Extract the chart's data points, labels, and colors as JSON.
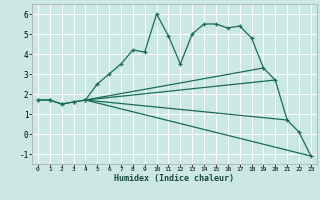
{
  "xlabel": "Humidex (Indice chaleur)",
  "bg_color": "#cce8e4",
  "grid_color": "#ffffff",
  "line_color": "#1a6b5a",
  "xlim": [
    -0.5,
    23.5
  ],
  "ylim": [
    -1.5,
    6.5
  ],
  "xticks": [
    0,
    1,
    2,
    3,
    4,
    5,
    6,
    7,
    8,
    9,
    10,
    11,
    12,
    13,
    14,
    15,
    16,
    17,
    18,
    19,
    20,
    21,
    22,
    23
  ],
  "yticks": [
    -1,
    0,
    1,
    2,
    3,
    4,
    5,
    6
  ],
  "series": [
    {
      "x": [
        0,
        1,
        2,
        3,
        4
      ],
      "y": [
        1.7,
        1.7,
        1.5,
        1.6,
        1.7
      ],
      "marker": true
    },
    {
      "x": [
        0,
        1,
        2,
        3,
        4,
        5,
        6,
        7,
        8,
        9,
        10,
        11,
        12,
        13,
        14,
        15,
        16,
        17,
        18,
        19,
        20,
        21,
        22,
        23
      ],
      "y": [
        1.7,
        1.7,
        1.5,
        1.6,
        1.7,
        2.5,
        3.0,
        3.5,
        4.2,
        4.1,
        6.0,
        4.9,
        3.5,
        5.0,
        5.5,
        5.5,
        5.3,
        5.4,
        4.8,
        3.3,
        2.7,
        0.7,
        0.1,
        -1.1
      ],
      "marker": true
    },
    {
      "x": [
        4,
        23
      ],
      "y": [
        1.7,
        -1.1
      ],
      "marker": false
    },
    {
      "x": [
        4,
        19
      ],
      "y": [
        1.7,
        3.3
      ],
      "marker": false
    },
    {
      "x": [
        4,
        20
      ],
      "y": [
        1.7,
        2.7
      ],
      "marker": false
    },
    {
      "x": [
        4,
        21
      ],
      "y": [
        1.7,
        0.7
      ],
      "marker": false
    }
  ]
}
